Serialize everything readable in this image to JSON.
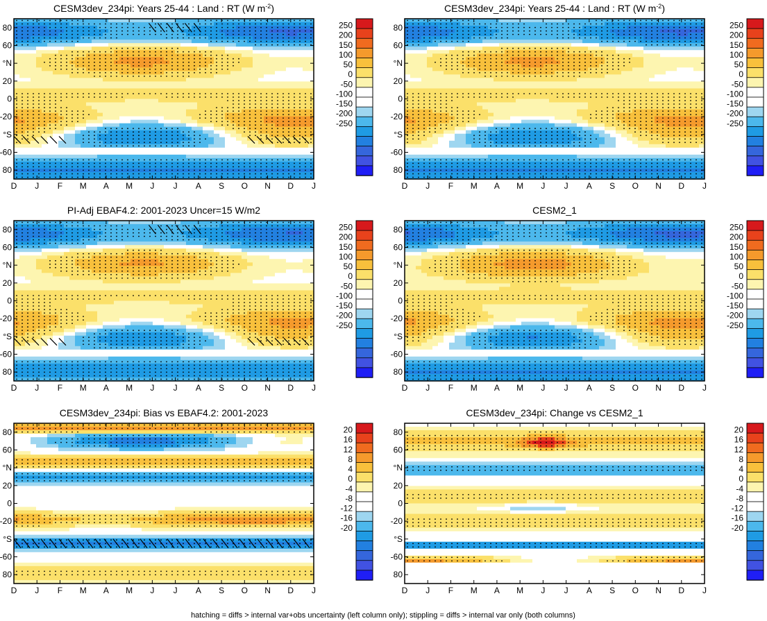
{
  "footnote": "hatching = diffs > internal var+obs uncertainty (left column only); stippling = diffs > internal var only (both columns)",
  "chart_data": [
    {
      "type": "heatmap",
      "panel": "top-left",
      "title": "CESM3dev_234pi: Years 25-44 : Land : RT (W m",
      "title_sup": "-2",
      "title_end": ")",
      "x_ticks": [
        "D",
        "J",
        "F",
        "M",
        "A",
        "M",
        "J",
        "J",
        "A",
        "S",
        "O",
        "N",
        "D",
        "J"
      ],
      "y_ticks": [
        "80",
        "60",
        "°N",
        "20",
        "0",
        "-20",
        "°S",
        "-60",
        "80"
      ],
      "ylim": [
        -90,
        90
      ],
      "colorbar_labels": [
        "250",
        "200",
        "150",
        "100",
        "50",
        "0",
        "-50",
        "-100",
        "-150",
        "-200",
        "-250"
      ],
      "stippling": true,
      "hatching": true,
      "variant": "model"
    },
    {
      "type": "heatmap",
      "panel": "top-right",
      "title": "CESM3dev_234pi: Years 25-44 : Land : RT (W m",
      "title_sup": "-2",
      "title_end": ")",
      "x_ticks": [
        "D",
        "J",
        "F",
        "M",
        "A",
        "M",
        "J",
        "J",
        "A",
        "S",
        "O",
        "N",
        "D",
        "J"
      ],
      "y_ticks": [
        "80",
        "60",
        "°N",
        "20",
        "0",
        "-20",
        "°S",
        "-60",
        "80"
      ],
      "ylim": [
        -90,
        90
      ],
      "colorbar_labels": [
        "250",
        "200",
        "150",
        "100",
        "50",
        "0",
        "-50",
        "-100",
        "-150",
        "-200",
        "-250"
      ],
      "stippling": true,
      "hatching": false,
      "variant": "model"
    },
    {
      "type": "heatmap",
      "panel": "middle-left",
      "title": "PI-Adj EBAF4.2: 2001-2023 Uncer=15 W/m2",
      "x_ticks": [
        "D",
        "J",
        "F",
        "M",
        "A",
        "M",
        "J",
        "J",
        "A",
        "S",
        "O",
        "N",
        "D",
        "J"
      ],
      "y_ticks": [
        "80",
        "60",
        "°N",
        "20",
        "0",
        "-20",
        "°S",
        "-60",
        "80"
      ],
      "ylim": [
        -90,
        90
      ],
      "colorbar_labels": [
        "250",
        "200",
        "150",
        "100",
        "50",
        "0",
        "-50",
        "-100",
        "-150",
        "-200",
        "-250"
      ],
      "stippling": true,
      "hatching": true,
      "variant": "obs"
    },
    {
      "type": "heatmap",
      "panel": "middle-right",
      "title": "CESM2_1",
      "x_ticks": [
        "D",
        "J",
        "F",
        "M",
        "A",
        "M",
        "J",
        "J",
        "A",
        "S",
        "O",
        "N",
        "D",
        "J"
      ],
      "y_ticks": [
        "80",
        "60",
        "°N",
        "20",
        "0",
        "-20",
        "°S",
        "-60",
        "80"
      ],
      "ylim": [
        -90,
        90
      ],
      "colorbar_labels": [
        "250",
        "200",
        "150",
        "100",
        "50",
        "0",
        "-50",
        "-100",
        "-150",
        "-200",
        "-250"
      ],
      "stippling": true,
      "hatching": false,
      "variant": "model2"
    },
    {
      "type": "heatmap",
      "panel": "bottom-left",
      "title": "CESM3dev_234pi: Bias vs EBAF4.2: 2001-2023",
      "x_ticks": [
        "D",
        "J",
        "F",
        "M",
        "A",
        "M",
        "J",
        "J",
        "A",
        "S",
        "O",
        "N",
        "D",
        "J"
      ],
      "y_ticks": [
        "80",
        "60",
        "°N",
        "20",
        "0",
        "-20",
        "°S",
        "-60",
        "80"
      ],
      "ylim": [
        -90,
        90
      ],
      "colorbar_labels": [
        "20",
        "16",
        "12",
        "8",
        "4",
        "0",
        "-4",
        "-8",
        "-12",
        "-16",
        "-20"
      ],
      "stippling": true,
      "hatching": true,
      "variant": "bias"
    },
    {
      "type": "heatmap",
      "panel": "bottom-right",
      "title": "CESM3dev_234pi: Change vs CESM2_1",
      "x_ticks": [
        "D",
        "J",
        "F",
        "M",
        "A",
        "M",
        "J",
        "J",
        "A",
        "S",
        "O",
        "N",
        "D",
        "J"
      ],
      "y_ticks": [
        "80",
        "60",
        "°N",
        "20",
        "0",
        "-20",
        "°S",
        "-60",
        "80"
      ],
      "ylim": [
        -90,
        90
      ],
      "colorbar_labels": [
        "20",
        "16",
        "12",
        "8",
        "4",
        "0",
        "-4",
        "-8",
        "-12",
        "-16",
        "-20"
      ],
      "stippling": true,
      "hatching": false,
      "variant": "change"
    }
  ],
  "colors": {
    "palette_high_to_low": [
      "#d7191c",
      "#e8421c",
      "#f06b1f",
      "#f59a2c",
      "#f8c03c",
      "#fbe06a",
      "#fdf5b0",
      "#ffffff",
      "#ffffff",
      "#9ed6f0",
      "#4cb8ec",
      "#1f9be4",
      "#2280e0",
      "#3566dc",
      "#4152e2",
      "#1f1ef5"
    ]
  }
}
